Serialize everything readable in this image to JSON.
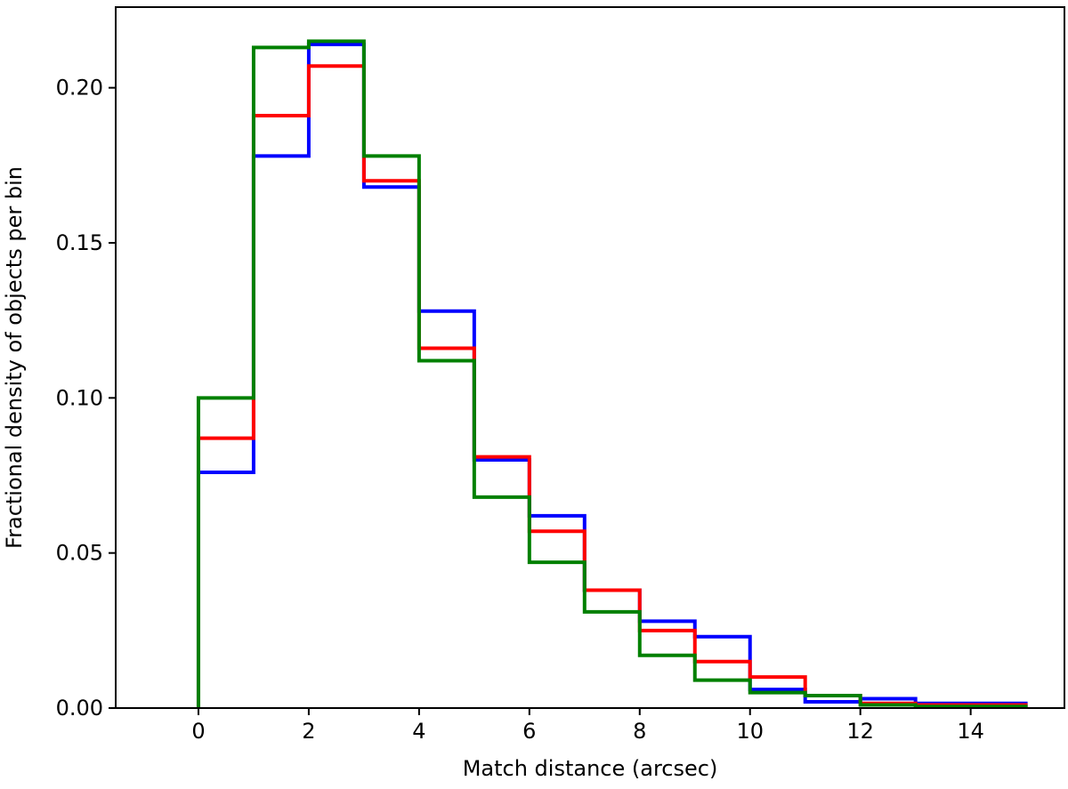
{
  "chart_data": {
    "type": "histogram-step",
    "xlabel": "Match distance (arcsec)",
    "ylabel": "Fractional density of objects per bin",
    "xlim": [
      -1.5,
      15.7
    ],
    "ylim": [
      0,
      0.226
    ],
    "xticks": [
      0,
      2,
      4,
      6,
      8,
      10,
      12,
      14
    ],
    "yticks": [
      0.0,
      0.05,
      0.1,
      0.15,
      0.2
    ],
    "xtick_labels": [
      "0",
      "2",
      "4",
      "6",
      "8",
      "10",
      "12",
      "14"
    ],
    "ytick_labels": [
      "0.00",
      "0.05",
      "0.10",
      "0.15",
      "0.20"
    ],
    "grid": false,
    "bin_edges": [
      0,
      1,
      2,
      3,
      4,
      5,
      6,
      7,
      8,
      9,
      10,
      11,
      12,
      13,
      14,
      15
    ],
    "series": [
      {
        "color": "#0000ff",
        "values": [
          0.076,
          0.178,
          0.214,
          0.168,
          0.128,
          0.08,
          0.062,
          0.038,
          0.028,
          0.023,
          0.006,
          0.002,
          0.003,
          0.0015,
          0.0015
        ]
      },
      {
        "color": "#ff0000",
        "values": [
          0.087,
          0.191,
          0.207,
          0.17,
          0.116,
          0.081,
          0.057,
          0.038,
          0.025,
          0.015,
          0.01,
          0.004,
          0.0015,
          0.001,
          0.001
        ]
      },
      {
        "color": "#008000",
        "values": [
          0.1,
          0.213,
          0.215,
          0.178,
          0.112,
          0.068,
          0.047,
          0.031,
          0.017,
          0.009,
          0.005,
          0.004,
          0.001,
          0.0005,
          0.0005
        ]
      }
    ]
  }
}
